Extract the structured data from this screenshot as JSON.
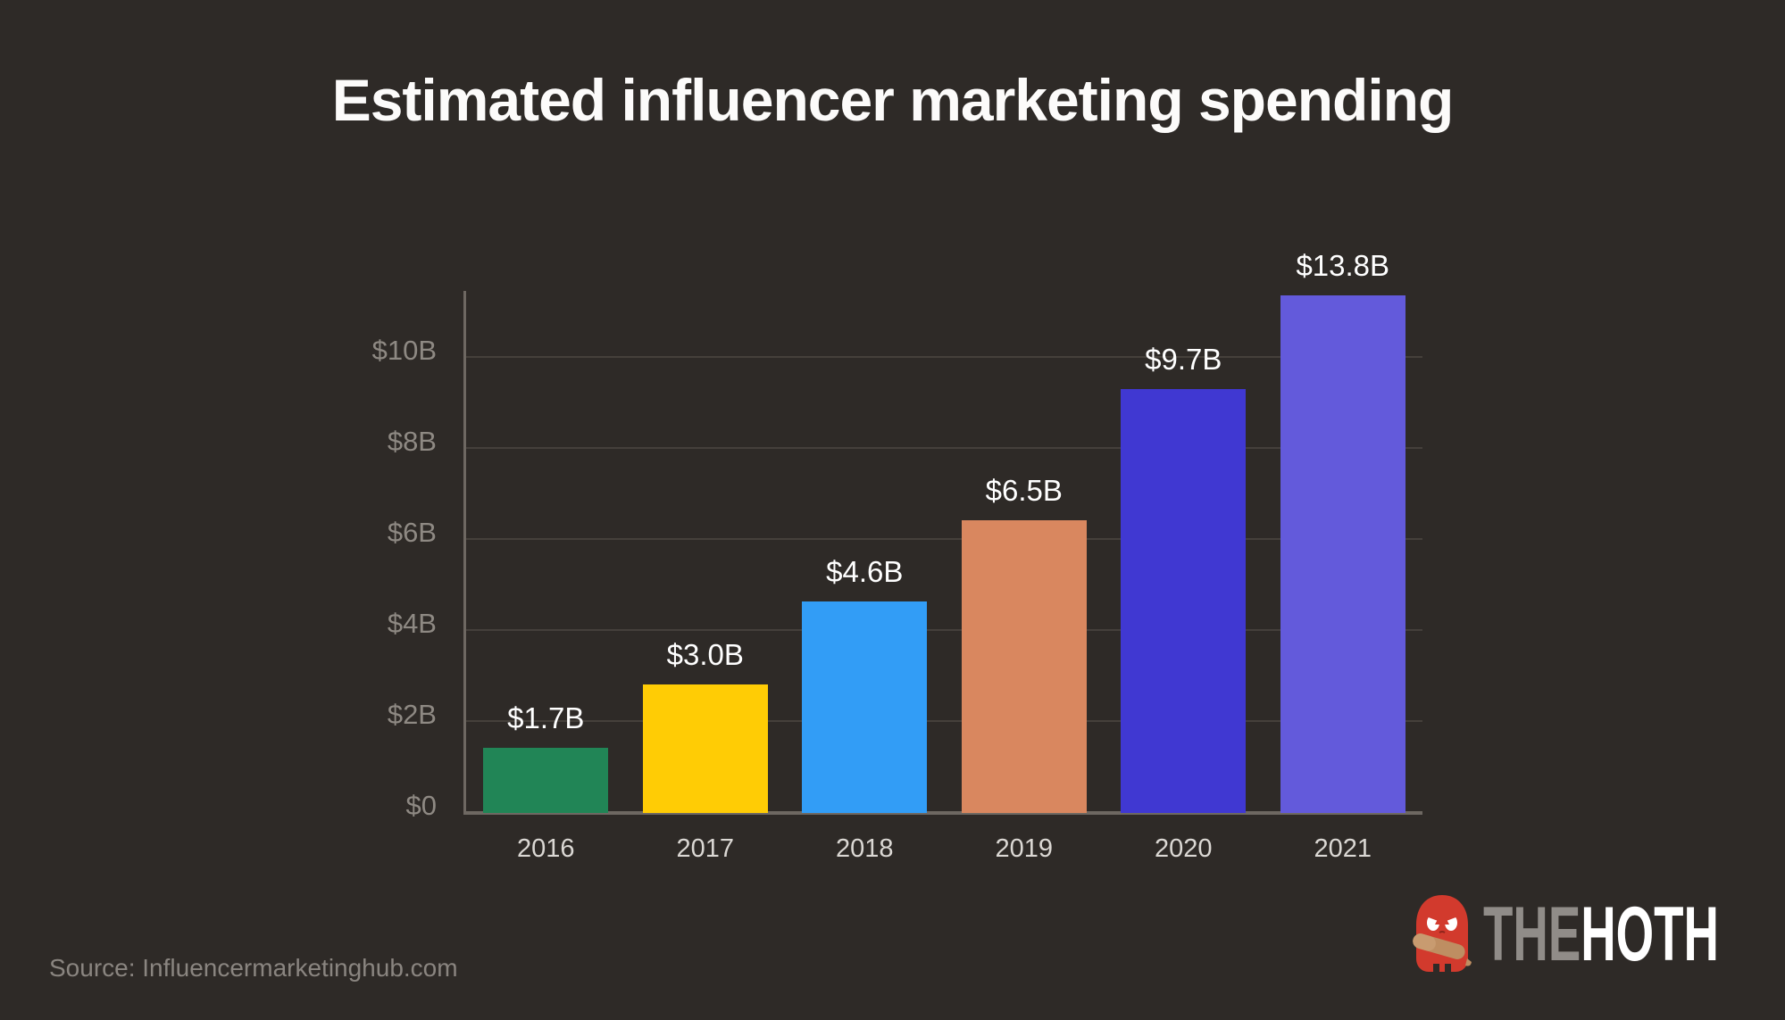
{
  "title": "Estimated influencer marketing spending",
  "source": "Source: Influencermarketinghub.com",
  "logo": {
    "the": "THE",
    "hoth": "HOTH"
  },
  "colors": {
    "bg": "#2E2A27",
    "title": "#FCFBFA",
    "grid": "#45403B",
    "axis": "#6E6862",
    "tick": "#8E8983",
    "year": "#DBD8D4",
    "value": "#FFFFFF",
    "source": "#8A8580",
    "logo-the": "#908C88",
    "logo-hoth": "#FFFFFF",
    "mascot-red": "#D23A2D",
    "mascot-club": "#BE8E62"
  },
  "chart_data": {
    "type": "bar",
    "title": "Estimated influencer marketing spending",
    "unit": "USD billions",
    "categories": [
      "2016",
      "2017",
      "2018",
      "2019",
      "2020",
      "2021"
    ],
    "values": [
      1.7,
      3.0,
      4.6,
      6.5,
      9.7,
      13.8
    ],
    "value_labels": [
      "$1.7B",
      "$3.0B",
      "$4.6B",
      "$6.5B",
      "$9.7B",
      "$13.8B"
    ],
    "bar_colors": [
      "#218556",
      "#FFCC05",
      "#329DF6",
      "#D9875F",
      "#4038D2",
      "#635ADB"
    ],
    "y_ticks": [
      {
        "label": "$0",
        "value": 0
      },
      {
        "label": "$2B",
        "value": 2
      },
      {
        "label": "$4B",
        "value": 4
      },
      {
        "label": "$6B",
        "value": 6
      },
      {
        "label": "$8B",
        "value": 8
      },
      {
        "label": "$10B",
        "value": 10
      }
    ],
    "xlabel": "",
    "ylabel": "",
    "layout_hints": {
      "grid": true,
      "legend": false,
      "ylim_display": [
        0,
        11.47
      ],
      "bar_display_heights_pct": [
        12.5,
        24.6,
        40.5,
        56.1,
        81.2,
        99.1
      ],
      "note": "Bars in source graphic are drawn slightly shorter than labeled values; 2021 bar nearly fills plot height."
    }
  }
}
